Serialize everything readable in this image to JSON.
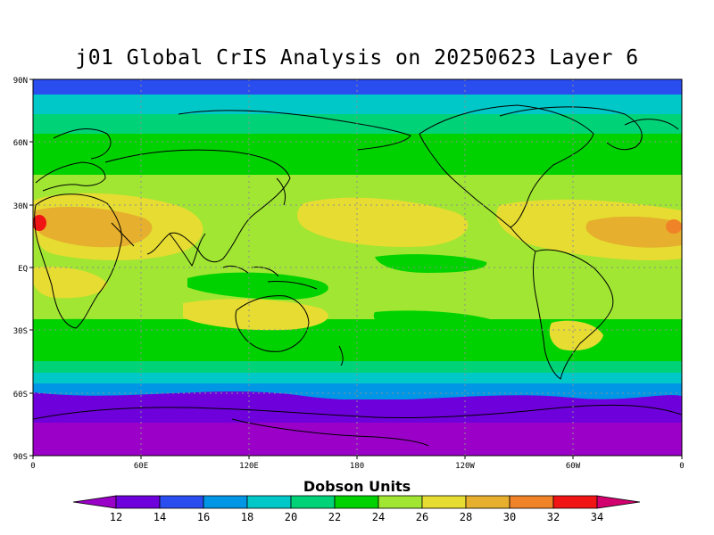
{
  "title": "j01 Global CrIS Analysis on 20250623 Layer 6",
  "axes": {
    "y_ticks": [
      "90N",
      "60N",
      "30N",
      "EQ",
      "30S",
      "60S",
      "90S"
    ],
    "x_ticks": [
      "0",
      "60E",
      "120E",
      "180",
      "120W",
      "60W",
      "0"
    ]
  },
  "colorbar": {
    "label": "Dobson Units",
    "ticks": [
      "12",
      "14",
      "16",
      "18",
      "20",
      "22",
      "24",
      "26",
      "28",
      "30",
      "32",
      "34"
    ],
    "colors": [
      "#9b00c8",
      "#6e00dc",
      "#2a4df0",
      "#0096e6",
      "#00c8c8",
      "#00d278",
      "#00d200",
      "#a0e632",
      "#e6dc32",
      "#e6af2d",
      "#f08228",
      "#f01414",
      "#d2006e"
    ]
  },
  "field_colors": {
    "ocean_polar_north": "#2a4df0",
    "band_cyan": "#00c8c8",
    "band_teal": "#00d278",
    "band_green": "#00d200",
    "band_lightgreen": "#a0e632",
    "band_yellow": "#e6dc32",
    "band_orange": "#e6af2d",
    "band_darkorange": "#f08228",
    "band_red": "#f01414",
    "south_blue": "#0096e6",
    "south_purple": "#6e00dc",
    "south_violet": "#9b00c8",
    "coast": "#000000",
    "grid": "#909090"
  }
}
